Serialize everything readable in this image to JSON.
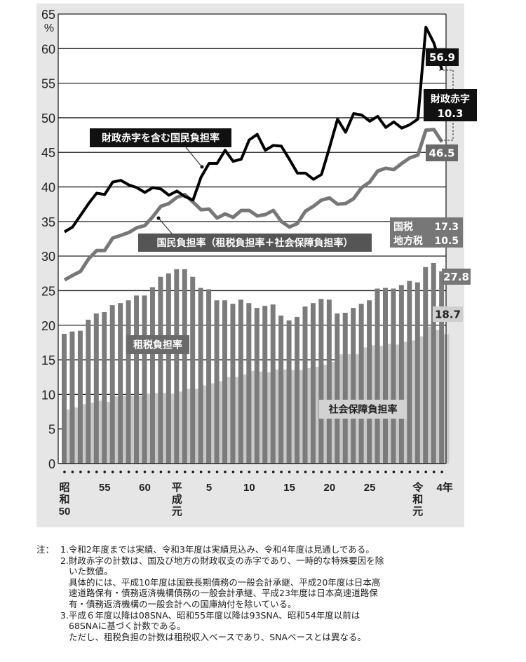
{
  "chart_data": {
    "type": "bar+line",
    "y_unit": "%",
    "ylim": [
      0,
      65
    ],
    "y_ticks": [
      "0",
      "5",
      "10",
      "15",
      "20",
      "25",
      "30",
      "35",
      "40",
      "45",
      "50",
      "55",
      "60",
      "65"
    ],
    "grid": true,
    "categories": [
      "昭和50",
      "昭和51",
      "昭和52",
      "昭和53",
      "昭和54",
      "昭和55",
      "昭和56",
      "昭和57",
      "昭和58",
      "昭和59",
      "昭和60",
      "昭和61",
      "昭和62",
      "昭和63",
      "平成元",
      "平成2",
      "平成3",
      "平成4",
      "平成5",
      "平成6",
      "平成7",
      "平成8",
      "平成9",
      "平成10",
      "平成11",
      "平成12",
      "平成13",
      "平成14",
      "平成15",
      "平成16",
      "平成17",
      "平成18",
      "平成19",
      "平成20",
      "平成21",
      "平成22",
      "平成23",
      "平成24",
      "平成25",
      "平成26",
      "平成27",
      "平成28",
      "平成29",
      "平成30",
      "令和元",
      "令和2",
      "令和3",
      "令和4"
    ],
    "x_tick_labels": [
      {
        "index": 0,
        "label": "昭\n和\n50"
      },
      {
        "index": 5,
        "label": "55"
      },
      {
        "index": 10,
        "label": "60"
      },
      {
        "index": 14,
        "label": "平\n成\n元"
      },
      {
        "index": 18,
        "label": "5"
      },
      {
        "index": 23,
        "label": "10"
      },
      {
        "index": 28,
        "label": "15"
      },
      {
        "index": 33,
        "label": "20"
      },
      {
        "index": 38,
        "label": "25"
      },
      {
        "index": 44,
        "label": "令\n和\n元"
      },
      {
        "index": 47,
        "label": "4年"
      }
    ],
    "series": [
      {
        "name": "租税負担率",
        "type": "bar",
        "color": "#7b7b7b",
        "values": [
          18.75,
          19.1,
          19.2,
          20.8,
          21.7,
          21.9,
          22.9,
          23.2,
          23.6,
          24.3,
          24.3,
          25.5,
          27.0,
          27.5,
          28.1,
          28.1,
          27.0,
          25.4,
          25.2,
          23.6,
          23.6,
          23.1,
          23.7,
          23.2,
          22.5,
          22.8,
          23.0,
          21.4,
          20.7,
          21.2,
          22.7,
          23.2,
          23.8,
          23.7,
          21.7,
          21.8,
          22.5,
          23.1,
          23.6,
          25.3,
          25.4,
          25.3,
          25.8,
          26.4,
          26.2,
          28.4,
          29.0,
          27.8
        ]
      },
      {
        "name": "社会保障負担率",
        "type": "bar",
        "color": "#c9c9c9",
        "values": [
          7.8,
          8.1,
          8.6,
          8.8,
          9.1,
          8.9,
          9.7,
          9.8,
          9.8,
          9.8,
          10.1,
          10.2,
          10.2,
          10.1,
          10.4,
          10.8,
          10.8,
          11.3,
          11.6,
          11.9,
          12.5,
          12.5,
          12.9,
          13.4,
          13.3,
          13.2,
          13.6,
          13.6,
          13.5,
          13.5,
          13.8,
          14.0,
          14.3,
          14.7,
          15.8,
          15.8,
          15.8,
          16.8,
          17.1,
          17.0,
          17.3,
          17.2,
          17.6,
          17.8,
          18.4,
          19.8,
          19.3,
          18.7
        ]
      },
      {
        "name": "国民負担率（租税負担率＋社会保障負担率）",
        "type": "line",
        "color": "#777777",
        "values": [
          26.55,
          27.2,
          27.8,
          29.6,
          30.8,
          30.8,
          32.6,
          33.0,
          33.4,
          34.1,
          34.4,
          35.7,
          37.2,
          37.6,
          38.5,
          38.9,
          37.8,
          36.7,
          36.8,
          35.5,
          36.1,
          35.6,
          36.6,
          36.6,
          35.8,
          36.0,
          36.6,
          35.0,
          34.2,
          34.7,
          36.5,
          37.2,
          38.1,
          38.4,
          37.5,
          37.6,
          38.3,
          39.9,
          40.7,
          42.3,
          42.7,
          42.5,
          43.4,
          44.2,
          44.6,
          48.2,
          48.3,
          46.5
        ]
      },
      {
        "name": "財政赤字を含む国民負担率",
        "type": "line",
        "color": "#000000",
        "values": [
          33.5,
          34.2,
          35.9,
          37.6,
          39.1,
          38.9,
          40.7,
          40.95,
          40.3,
          39.9,
          39.2,
          39.9,
          39.7,
          38.8,
          39.4,
          38.6,
          38.1,
          41.4,
          43.4,
          43.4,
          45.3,
          43.7,
          44.0,
          46.8,
          47.6,
          45.3,
          46.0,
          45.9,
          44.0,
          42.0,
          42.0,
          41.1,
          41.8,
          45.7,
          49.8,
          47.9,
          50.6,
          50.4,
          49.5,
          50.2,
          48.6,
          49.4,
          48.5,
          49.0,
          49.8,
          63.1,
          60.8,
          56.9
        ]
      }
    ],
    "annotations": {
      "deficit_line_label": "財政赤字を含む国民負担率",
      "burden_line_label": "国民負担率（租税負担率＋社会保障負担率）",
      "tax_bar_label": "租税負担率",
      "ss_bar_label": "社会保障負担率",
      "deficit_total_value": "56.9",
      "deficit_title": "財政赤字",
      "deficit_value": "10.3",
      "burden_value": "46.5",
      "national_tax_label": "国税",
      "national_tax_value": "17.3",
      "local_tax_label": "地方税",
      "local_tax_value": "10.5",
      "tax_value": "27.8",
      "ss_value": "18.7"
    }
  },
  "notes": {
    "prefix": "注：",
    "n1": "1.令和2年度までは実績、令和3年度は実績見込み、令和4年度は見通しである。",
    "n2a": "2.財政赤字の計数は、国及び地方の財政収支の赤字であり、一時的な特殊要因を除",
    "n2b": "いた数値。",
    "n2c": "具体的には、平成10年度は国鉄長期債務の一般会計承継、平成20年度は日本高",
    "n2d": "速道路保有・債務返済機構債務の一般会計承継、平成23年度は日本高速道路保",
    "n2e": "有・債務返済機構の一般会計への国庫納付を除いている。",
    "n3a": "3.平成６年度以降は08SNA、昭和55年度以降は93SNA、昭和54年度以前は",
    "n3b": "68SNAに基づく計数である。",
    "n3c": "ただし、租税負担の計数は租税収入ベースであり、SNAベースとは異なる。"
  }
}
